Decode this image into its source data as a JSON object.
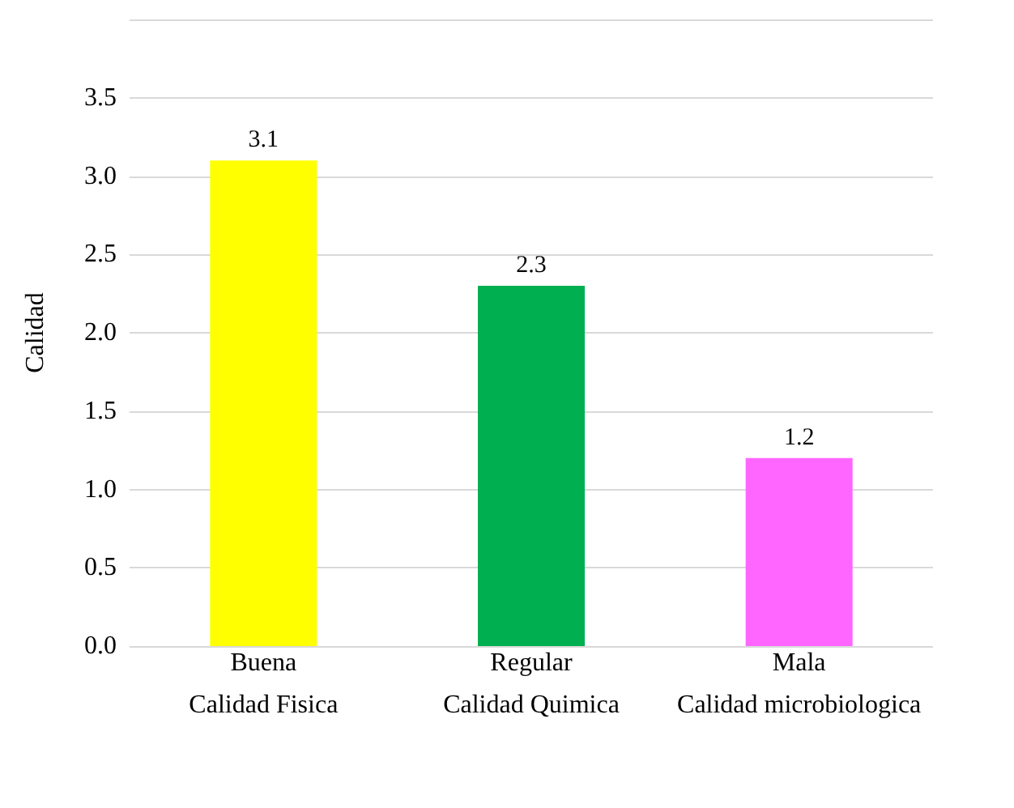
{
  "chart_data": {
    "type": "bar",
    "ylabel": "Calidad",
    "categories": [
      "Buena\nCalidad Fisica",
      "Regular\nCalidad Quimica",
      "Mala\nCalidad microbiologica"
    ],
    "values": [
      3.1,
      2.3,
      1.2
    ],
    "colors": [
      "#ffff00",
      "#00b050",
      "#ff66ff"
    ],
    "ylim": [
      0,
      4
    ],
    "yticks": [
      {
        "value": 0,
        "label": "0.0"
      },
      {
        "value": 0.5,
        "label": "0.5"
      },
      {
        "value": 1,
        "label": "1.0"
      },
      {
        "value": 1.5,
        "label": "1.5"
      },
      {
        "value": 2,
        "label": "2.0"
      },
      {
        "value": 2.5,
        "label": "2.5"
      },
      {
        "value": 3,
        "label": "3.0"
      },
      {
        "value": 3.5,
        "label": "3.5"
      },
      {
        "value": 4,
        "label": null
      }
    ],
    "grid": "y",
    "data_labels": true
  }
}
